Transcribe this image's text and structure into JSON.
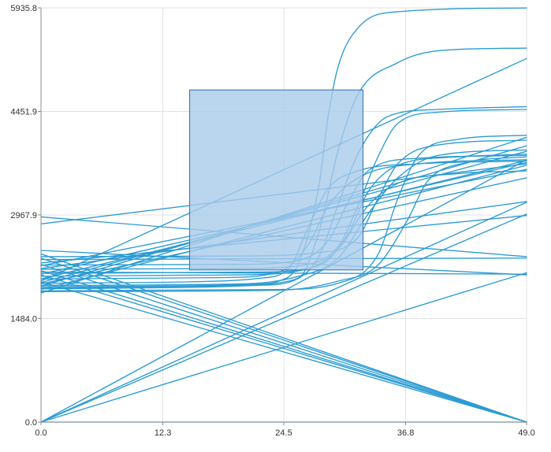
{
  "chart_data": {
    "type": "line",
    "title": "",
    "xlabel": "",
    "ylabel": "",
    "xlim": [
      0,
      49
    ],
    "ylim": [
      0,
      5935.8
    ],
    "x_ticks": [
      0,
      12.3,
      24.5,
      36.8,
      49
    ],
    "x_tick_labels": [
      "0.0",
      "12.3",
      "24.5",
      "36.8",
      "49.0"
    ],
    "y_ticks": [
      0,
      1484,
      2967.9,
      4451.9,
      5935.8
    ],
    "y_tick_labels": [
      "0.0",
      "1484.0",
      "2967.9",
      "4451.9",
      "5935.8"
    ],
    "grid": true,
    "legend": "none",
    "colors": {
      "series": "#2b9bd3",
      "selection_fill": "#a9cbea",
      "selection_stroke": "#2f6fb4",
      "grid": "#e2e2e2",
      "axis": "#8c8c8c"
    },
    "selection_box": {
      "x": [
        15,
        32.5
      ],
      "y": [
        2180,
        4760
      ]
    },
    "series": [
      {
        "values": [
          [
            0,
            2280
          ],
          [
            49,
            2960
          ]
        ]
      },
      {
        "values": [
          [
            0,
            2330
          ],
          [
            49,
            2350
          ]
        ]
      },
      {
        "values": [
          [
            0,
            2460
          ],
          [
            49,
            2110
          ]
        ]
      },
      {
        "values": [
          [
            0,
            2940
          ],
          [
            49,
            2370
          ]
        ]
      },
      {
        "values": [
          [
            0,
            2840
          ],
          [
            49,
            3700
          ]
        ]
      },
      {
        "values": [
          [
            0,
            2120
          ],
          [
            49,
            3720
          ]
        ]
      },
      {
        "values": [
          [
            0,
            1900
          ],
          [
            49,
            3680
          ]
        ]
      },
      {
        "values": [
          [
            0,
            1950
          ],
          [
            49,
            3960
          ]
        ]
      },
      {
        "values": [
          [
            0,
            2020
          ],
          [
            49,
            5210
          ]
        ]
      },
      {
        "values": [
          [
            0,
            1850
          ],
          [
            49,
            4080
          ]
        ]
      },
      {
        "values": [
          [
            0,
            1980
          ],
          [
            49,
            3500
          ]
        ]
      },
      {
        "values": [
          [
            0,
            2000
          ],
          [
            49,
            3880
          ]
        ]
      },
      {
        "values": [
          [
            0,
            2240
          ],
          [
            49,
            3620
          ]
        ]
      },
      {
        "values": [
          [
            0,
            2200
          ],
          [
            49,
            3160
          ]
        ]
      },
      {
        "values": [
          [
            0,
            2050
          ],
          [
            49,
            3750
          ]
        ]
      },
      {
        "values": [
          [
            0,
            2150
          ],
          [
            49,
            2120
          ]
        ]
      },
      {
        "values": [
          [
            0,
            2010
          ],
          [
            49,
            0
          ]
        ]
      },
      {
        "values": [
          [
            0,
            2110
          ],
          [
            49,
            0
          ]
        ]
      },
      {
        "values": [
          [
            0,
            2170
          ],
          [
            49,
            0
          ]
        ]
      },
      {
        "values": [
          [
            0,
            2260
          ],
          [
            49,
            0
          ]
        ]
      },
      {
        "values": [
          [
            0,
            2350
          ],
          [
            49,
            0
          ]
        ]
      },
      {
        "values": [
          [
            0,
            2410
          ],
          [
            49,
            0
          ]
        ]
      },
      {
        "values": [
          [
            0,
            0
          ],
          [
            49,
            3760
          ]
        ]
      },
      {
        "values": [
          [
            0,
            0
          ],
          [
            49,
            2980
          ]
        ]
      },
      {
        "values": [
          [
            0,
            0
          ],
          [
            49,
            3150
          ]
        ]
      },
      {
        "values": [
          [
            0,
            0
          ],
          [
            49,
            2140
          ]
        ]
      },
      {
        "values": [
          [
            0,
            0
          ],
          [
            49,
            0
          ]
        ]
      },
      {
        "values": [
          [
            0,
            1940
          ],
          [
            14,
            1950
          ],
          [
            18,
            1960
          ],
          [
            22,
            1980
          ],
          [
            24,
            2020
          ],
          [
            26,
            2280
          ],
          [
            28,
            3350
          ],
          [
            29,
            4400
          ],
          [
            30,
            5100
          ],
          [
            32,
            5650
          ],
          [
            36,
            5880
          ],
          [
            49,
            5935
          ]
        ]
      },
      {
        "values": [
          [
            0,
            1910
          ],
          [
            15,
            1930
          ],
          [
            22,
            1960
          ],
          [
            26,
            2060
          ],
          [
            28,
            2700
          ],
          [
            30,
            3900
          ],
          [
            32,
            4700
          ],
          [
            36,
            5150
          ],
          [
            40,
            5320
          ],
          [
            49,
            5360
          ]
        ]
      },
      {
        "values": [
          [
            0,
            1920
          ],
          [
            18,
            1950
          ],
          [
            25,
            2020
          ],
          [
            28,
            2360
          ],
          [
            30,
            3120
          ],
          [
            32,
            3850
          ],
          [
            35,
            4380
          ],
          [
            40,
            4480
          ],
          [
            49,
            4520
          ]
        ]
      },
      {
        "values": [
          [
            0,
            2190
          ],
          [
            20,
            2200
          ],
          [
            26,
            2240
          ],
          [
            30,
            2520
          ],
          [
            32,
            3100
          ],
          [
            34,
            3800
          ],
          [
            36,
            4280
          ],
          [
            40,
            4440
          ],
          [
            49,
            4480
          ]
        ]
      },
      {
        "values": [
          [
            0,
            1880
          ],
          [
            24,
            1900
          ],
          [
            30,
            1990
          ],
          [
            34,
            2400
          ],
          [
            36,
            3200
          ],
          [
            38,
            3800
          ],
          [
            42,
            4050
          ],
          [
            49,
            4110
          ]
        ]
      },
      {
        "values": [
          [
            0,
            2370
          ],
          [
            20,
            2380
          ],
          [
            28,
            2430
          ],
          [
            32,
            2650
          ],
          [
            34,
            3200
          ],
          [
            36,
            3700
          ],
          [
            40,
            3970
          ],
          [
            49,
            4040
          ]
        ]
      },
      {
        "values": [
          [
            0,
            2250
          ],
          [
            20,
            2260
          ],
          [
            26,
            2320
          ],
          [
            29,
            2600
          ],
          [
            31,
            3150
          ],
          [
            33,
            3600
          ],
          [
            38,
            3780
          ],
          [
            49,
            3820
          ]
        ]
      },
      {
        "values": [
          [
            0,
            2050
          ],
          [
            18,
            2070
          ],
          [
            24,
            2150
          ],
          [
            27,
            2550
          ],
          [
            29,
            3100
          ],
          [
            32,
            3500
          ],
          [
            38,
            3700
          ],
          [
            49,
            3760
          ]
        ]
      },
      {
        "values": [
          [
            0,
            2090
          ],
          [
            20,
            2110
          ],
          [
            27,
            2200
          ],
          [
            30,
            2480
          ],
          [
            33,
            3100
          ],
          [
            36,
            3420
          ],
          [
            42,
            3560
          ],
          [
            49,
            3600
          ]
        ]
      },
      {
        "values": [
          [
            0,
            1870
          ],
          [
            24,
            1890
          ],
          [
            30,
            2020
          ],
          [
            34,
            2250
          ],
          [
            37,
            2900
          ],
          [
            39,
            3450
          ],
          [
            43,
            3720
          ],
          [
            49,
            3800
          ]
        ]
      },
      {
        "values": [
          [
            0,
            1960
          ],
          [
            20,
            1980
          ],
          [
            26,
            2090
          ],
          [
            30,
            2350
          ],
          [
            33,
            2980
          ],
          [
            36,
            3500
          ],
          [
            40,
            3820
          ],
          [
            49,
            3900
          ]
        ]
      },
      {
        "values": [
          [
            0,
            2130
          ],
          [
            22,
            2150
          ],
          [
            28,
            2240
          ],
          [
            31,
            2700
          ],
          [
            33,
            3300
          ],
          [
            36,
            3680
          ],
          [
            42,
            3800
          ],
          [
            49,
            3840
          ]
        ]
      },
      {
        "values": [
          [
            0,
            1990
          ],
          [
            15,
            2010
          ],
          [
            22,
            2060
          ],
          [
            25,
            2200
          ],
          [
            27,
            2800
          ],
          [
            29,
            3350
          ],
          [
            32,
            3600
          ],
          [
            38,
            3700
          ],
          [
            49,
            3740
          ]
        ]
      }
    ]
  }
}
